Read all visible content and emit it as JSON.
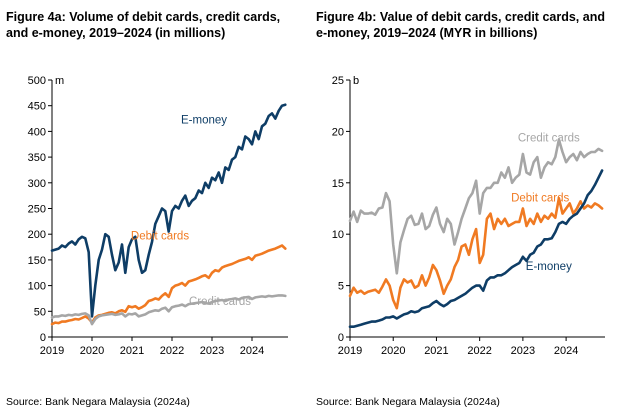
{
  "chart_data": [
    {
      "type": "line",
      "title": "Figure 4a: Volume of debit cards, credit cards, and e-money, 2019–2024 (in millions)",
      "source": "Source: Bank Negara Malaysia (2024a)",
      "unit_label": "m",
      "xlim": [
        2019,
        2024.9
      ],
      "ylim": [
        0,
        500
      ],
      "x_ticks": [
        "2019",
        "2020",
        "2021",
        "2022",
        "2023",
        "2024"
      ],
      "y_ticks": [
        "0",
        "50",
        "100",
        "150",
        "200",
        "250",
        "300",
        "350",
        "400",
        "450",
        "500"
      ],
      "grid": false,
      "series": [
        {
          "name": "E-money",
          "color": "#0e3d66",
          "x": [
            2019.0,
            2019.083,
            2019.167,
            2019.25,
            2019.333,
            2019.417,
            2019.5,
            2019.583,
            2019.667,
            2019.75,
            2019.833,
            2019.917,
            2020.0,
            2020.083,
            2020.167,
            2020.25,
            2020.333,
            2020.417,
            2020.5,
            2020.583,
            2020.667,
            2020.75,
            2020.833,
            2020.917,
            2021.0,
            2021.083,
            2021.167,
            2021.25,
            2021.333,
            2021.417,
            2021.5,
            2021.583,
            2021.667,
            2021.75,
            2021.833,
            2021.917,
            2022.0,
            2022.083,
            2022.167,
            2022.25,
            2022.333,
            2022.417,
            2022.5,
            2022.583,
            2022.667,
            2022.75,
            2022.833,
            2022.917,
            2023.0,
            2023.083,
            2023.167,
            2023.25,
            2023.333,
            2023.417,
            2023.5,
            2023.583,
            2023.667,
            2023.75,
            2023.833,
            2023.917,
            2024.0,
            2024.083,
            2024.167,
            2024.25,
            2024.333,
            2024.417,
            2024.5,
            2024.583,
            2024.667,
            2024.75,
            2024.833
          ],
          "values": [
            168,
            170,
            172,
            178,
            175,
            182,
            186,
            180,
            190,
            195,
            192,
            165,
            40,
            100,
            150,
            170,
            200,
            195,
            160,
            130,
            145,
            180,
            125,
            175,
            190,
            195,
            150,
            125,
            130,
            160,
            185,
            220,
            235,
            250,
            245,
            205,
            245,
            255,
            250,
            265,
            275,
            255,
            265,
            270,
            285,
            280,
            300,
            290,
            310,
            305,
            320,
            300,
            330,
            325,
            345,
            350,
            370,
            365,
            390,
            385,
            375,
            400,
            385,
            410,
            415,
            430,
            435,
            425,
            440,
            450,
            452
          ]
        },
        {
          "name": "Debit cards",
          "color": "#f07a22",
          "x": [
            2019.0,
            2019.083,
            2019.167,
            2019.25,
            2019.333,
            2019.417,
            2019.5,
            2019.583,
            2019.667,
            2019.75,
            2019.833,
            2019.917,
            2020.0,
            2020.083,
            2020.167,
            2020.25,
            2020.333,
            2020.417,
            2020.5,
            2020.583,
            2020.667,
            2020.75,
            2020.833,
            2020.917,
            2021.0,
            2021.083,
            2021.167,
            2021.25,
            2021.333,
            2021.417,
            2021.5,
            2021.583,
            2021.667,
            2021.75,
            2021.833,
            2021.917,
            2022.0,
            2022.083,
            2022.167,
            2022.25,
            2022.333,
            2022.417,
            2022.5,
            2022.583,
            2022.667,
            2022.75,
            2022.833,
            2022.917,
            2023.0,
            2023.083,
            2023.167,
            2023.25,
            2023.333,
            2023.417,
            2023.5,
            2023.583,
            2023.667,
            2023.75,
            2023.833,
            2023.917,
            2024.0,
            2024.083,
            2024.167,
            2024.25,
            2024.333,
            2024.417,
            2024.5,
            2024.583,
            2024.667,
            2024.75,
            2024.833
          ],
          "values": [
            25,
            28,
            27,
            30,
            30,
            32,
            33,
            35,
            34,
            37,
            40,
            36,
            28,
            38,
            42,
            43,
            45,
            47,
            48,
            46,
            50,
            52,
            49,
            60,
            58,
            60,
            55,
            58,
            62,
            70,
            72,
            75,
            73,
            80,
            85,
            78,
            95,
            100,
            102,
            105,
            100,
            108,
            110,
            112,
            115,
            118,
            120,
            115,
            125,
            130,
            128,
            135,
            138,
            140,
            142,
            145,
            148,
            150,
            152,
            155,
            150,
            158,
            160,
            162,
            165,
            168,
            170,
            172,
            175,
            178,
            172
          ]
        },
        {
          "name": "Credit cards",
          "color": "#a6a6a6",
          "x": [
            2019.0,
            2019.083,
            2019.167,
            2019.25,
            2019.333,
            2019.417,
            2019.5,
            2019.583,
            2019.667,
            2019.75,
            2019.833,
            2019.917,
            2020.0,
            2020.083,
            2020.167,
            2020.25,
            2020.333,
            2020.417,
            2020.5,
            2020.583,
            2020.667,
            2020.75,
            2020.833,
            2020.917,
            2021.0,
            2021.083,
            2021.167,
            2021.25,
            2021.333,
            2021.417,
            2021.5,
            2021.583,
            2021.667,
            2021.75,
            2021.833,
            2021.917,
            2022.0,
            2022.083,
            2022.167,
            2022.25,
            2022.333,
            2022.417,
            2022.5,
            2022.583,
            2022.667,
            2022.75,
            2022.833,
            2022.917,
            2023.0,
            2023.083,
            2023.167,
            2023.25,
            2023.333,
            2023.417,
            2023.5,
            2023.583,
            2023.667,
            2023.75,
            2023.833,
            2023.917,
            2024.0,
            2024.083,
            2024.167,
            2024.25,
            2024.333,
            2024.417,
            2024.5,
            2024.583,
            2024.667,
            2024.75,
            2024.833
          ],
          "values": [
            38,
            40,
            40,
            42,
            41,
            43,
            42,
            44,
            43,
            45,
            46,
            42,
            25,
            35,
            40,
            42,
            43,
            44,
            45,
            43,
            44,
            46,
            40,
            45,
            44,
            46,
            40,
            42,
            44,
            48,
            50,
            52,
            51,
            55,
            57,
            50,
            58,
            60,
            61,
            63,
            60,
            64,
            65,
            66,
            67,
            68,
            66,
            65,
            68,
            70,
            71,
            72,
            70,
            73,
            74,
            75,
            73,
            76,
            77,
            78,
            74,
            77,
            78,
            79,
            78,
            80,
            79,
            80,
            81,
            81,
            80
          ]
        }
      ],
      "annotations": [
        {
          "text": "E-money",
          "x": 2022.8,
          "y": 415
        },
        {
          "text": "Debit cards",
          "x": 2021.7,
          "y": 190
        },
        {
          "text": "Credit cards",
          "x": 2023.2,
          "y": 62
        }
      ]
    },
    {
      "type": "line",
      "title": "Figure 4b: Value of debit cards, credit cards, and e-money, 2019–2024 (MYR in billions)",
      "source": "Source: Bank Negara Malaysia (2024a)",
      "unit_label": "b",
      "xlim": [
        2019,
        2024.9
      ],
      "ylim": [
        0,
        25
      ],
      "x_ticks": [
        "2019",
        "2020",
        "2021",
        "2022",
        "2023",
        "2024"
      ],
      "y_ticks": [
        "0",
        "5",
        "10",
        "15",
        "20",
        "25"
      ],
      "grid": false,
      "series": [
        {
          "name": "Credit cards",
          "color": "#a6a6a6",
          "x": [
            2019.0,
            2019.083,
            2019.167,
            2019.25,
            2019.333,
            2019.417,
            2019.5,
            2019.583,
            2019.667,
            2019.75,
            2019.833,
            2019.917,
            2020.0,
            2020.083,
            2020.167,
            2020.25,
            2020.333,
            2020.417,
            2020.5,
            2020.583,
            2020.667,
            2020.75,
            2020.833,
            2020.917,
            2021.0,
            2021.083,
            2021.167,
            2021.25,
            2021.333,
            2021.417,
            2021.5,
            2021.583,
            2021.667,
            2021.75,
            2021.833,
            2021.917,
            2022.0,
            2022.083,
            2022.167,
            2022.25,
            2022.333,
            2022.417,
            2022.5,
            2022.583,
            2022.667,
            2022.75,
            2022.833,
            2022.917,
            2023.0,
            2023.083,
            2023.167,
            2023.25,
            2023.333,
            2023.417,
            2023.5,
            2023.583,
            2023.667,
            2023.75,
            2023.833,
            2023.917,
            2024.0,
            2024.083,
            2024.167,
            2024.25,
            2024.333,
            2024.417,
            2024.5,
            2024.583,
            2024.667,
            2024.75,
            2024.833
          ],
          "values": [
            11.3,
            12.2,
            11.2,
            12.3,
            12.0,
            12.0,
            12.1,
            11.9,
            12.5,
            12.6,
            14.0,
            13.2,
            9.0,
            6.2,
            9.2,
            10.4,
            11.5,
            11.8,
            10.9,
            11.0,
            12.0,
            10.5,
            10.8,
            11.9,
            12.6,
            11.0,
            10.2,
            11.5,
            11.0,
            9.0,
            10.2,
            11.5,
            12.5,
            13.5,
            14.0,
            15.2,
            12.0,
            14.0,
            14.5,
            14.5,
            15.0,
            15.0,
            16.0,
            15.5,
            16.5,
            15.0,
            15.5,
            15.8,
            17.8,
            16.0,
            15.8,
            17.0,
            17.5,
            15.5,
            16.5,
            17.0,
            16.8,
            17.5,
            19.2,
            18.0,
            17.0,
            17.5,
            17.8,
            17.2,
            18.0,
            17.5,
            17.8,
            18.0,
            18.0,
            18.3,
            18.1
          ]
        },
        {
          "name": "Debit cards",
          "color": "#f07a22",
          "x": [
            2019.0,
            2019.083,
            2019.167,
            2019.25,
            2019.333,
            2019.417,
            2019.5,
            2019.583,
            2019.667,
            2019.75,
            2019.833,
            2019.917,
            2020.0,
            2020.083,
            2020.167,
            2020.25,
            2020.333,
            2020.417,
            2020.5,
            2020.583,
            2020.667,
            2020.75,
            2020.833,
            2020.917,
            2021.0,
            2021.083,
            2021.167,
            2021.25,
            2021.333,
            2021.417,
            2021.5,
            2021.583,
            2021.667,
            2021.75,
            2021.833,
            2021.917,
            2022.0,
            2022.083,
            2022.167,
            2022.25,
            2022.333,
            2022.417,
            2022.5,
            2022.583,
            2022.667,
            2022.75,
            2022.833,
            2022.917,
            2023.0,
            2023.083,
            2023.167,
            2023.25,
            2023.333,
            2023.417,
            2023.5,
            2023.583,
            2023.667,
            2023.75,
            2023.833,
            2023.917,
            2024.0,
            2024.083,
            2024.167,
            2024.25,
            2024.333,
            2024.417,
            2024.5,
            2024.583,
            2024.667,
            2024.75,
            2024.833
          ],
          "values": [
            4.0,
            4.8,
            4.3,
            4.5,
            4.2,
            4.4,
            4.5,
            4.6,
            4.3,
            4.9,
            5.6,
            5.0,
            3.6,
            2.8,
            4.8,
            5.6,
            5.3,
            5.5,
            4.8,
            5.0,
            6.0,
            5.0,
            5.8,
            7.0,
            6.5,
            5.5,
            4.2,
            5.0,
            5.6,
            6.8,
            7.5,
            8.8,
            9.0,
            8.0,
            9.5,
            10.5,
            7.2,
            8.0,
            11.5,
            12.0,
            10.5,
            11.5,
            11.0,
            11.5,
            10.8,
            11.0,
            11.2,
            11.2,
            12.5,
            10.8,
            11.5,
            11.0,
            12.0,
            11.2,
            11.8,
            11.5,
            12.0,
            11.6,
            13.5,
            12.0,
            12.5,
            13.0,
            12.0,
            12.5,
            13.2,
            12.5,
            12.8,
            12.6,
            13.0,
            12.8,
            12.5
          ]
        },
        {
          "name": "E-money",
          "color": "#0e3d66",
          "x": [
            2019.0,
            2019.083,
            2019.167,
            2019.25,
            2019.333,
            2019.417,
            2019.5,
            2019.583,
            2019.667,
            2019.75,
            2019.833,
            2019.917,
            2020.0,
            2020.083,
            2020.167,
            2020.25,
            2020.333,
            2020.417,
            2020.5,
            2020.583,
            2020.667,
            2020.75,
            2020.833,
            2020.917,
            2021.0,
            2021.083,
            2021.167,
            2021.25,
            2021.333,
            2021.417,
            2021.5,
            2021.583,
            2021.667,
            2021.75,
            2021.833,
            2021.917,
            2022.0,
            2022.083,
            2022.167,
            2022.25,
            2022.333,
            2022.417,
            2022.5,
            2022.583,
            2022.667,
            2022.75,
            2022.833,
            2022.917,
            2023.0,
            2023.083,
            2023.167,
            2023.25,
            2023.333,
            2023.417,
            2023.5,
            2023.583,
            2023.667,
            2023.75,
            2023.833,
            2023.917,
            2024.0,
            2024.083,
            2024.167,
            2024.25,
            2024.333,
            2024.417,
            2024.5,
            2024.583,
            2024.667,
            2024.75,
            2024.833
          ],
          "values": [
            1.0,
            1.0,
            1.1,
            1.2,
            1.3,
            1.4,
            1.5,
            1.5,
            1.6,
            1.7,
            1.9,
            1.9,
            2.0,
            1.8,
            2.0,
            2.2,
            2.3,
            2.5,
            2.4,
            2.5,
            2.8,
            2.9,
            3.0,
            3.3,
            3.5,
            3.2,
            3.0,
            3.2,
            3.5,
            3.6,
            3.8,
            4.0,
            4.2,
            4.5,
            4.8,
            5.0,
            5.0,
            4.5,
            5.5,
            5.8,
            5.8,
            6.0,
            6.0,
            6.2,
            6.5,
            6.8,
            7.0,
            7.2,
            7.8,
            7.4,
            8.0,
            8.2,
            8.8,
            9.0,
            9.5,
            9.5,
            9.6,
            10.2,
            11.0,
            11.2,
            11.0,
            11.5,
            11.8,
            12.0,
            12.5,
            13.0,
            13.8,
            14.2,
            14.8,
            15.5,
            16.2
          ]
        }
      ],
      "annotations": [
        {
          "text": "Credit cards",
          "x": 2023.6,
          "y": 19.0
        },
        {
          "text": "Debit cards",
          "x": 2023.4,
          "y": 13.2
        },
        {
          "text": "E-money",
          "x": 2023.6,
          "y": 6.5
        }
      ]
    }
  ]
}
